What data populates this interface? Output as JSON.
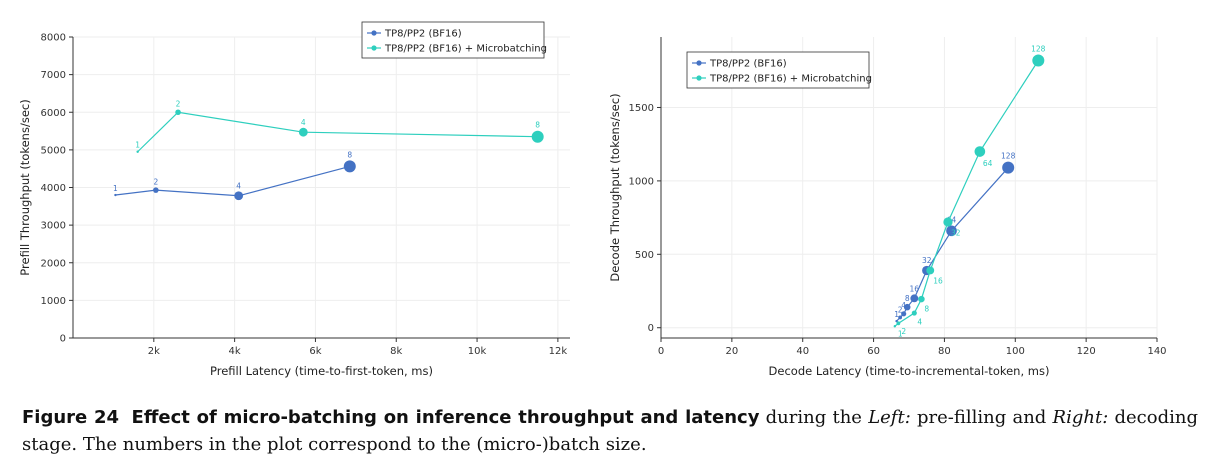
{
  "colors": {
    "series1": "#4472c4",
    "series2": "#2ecfbe",
    "grid": "#eeeeee",
    "axis": "#333333"
  },
  "chart_data": [
    {
      "type": "scatter",
      "panel": "left",
      "xlabel": "Prefill Latency (time-to-first-token, ms)",
      "ylabel": "Prefill Throughput (tokens/sec)",
      "xlim": [
        0,
        12300
      ],
      "ylim": [
        0,
        8000
      ],
      "xticks": [
        2000,
        4000,
        6000,
        8000,
        10000,
        12000
      ],
      "xtick_labels": [
        "2k",
        "4k",
        "6k",
        "8k",
        "10k",
        "12k"
      ],
      "yticks": [
        0,
        1000,
        2000,
        3000,
        4000,
        5000,
        6000,
        7000,
        8000
      ],
      "ytick_labels": [
        "0",
        "1000",
        "2000",
        "3000",
        "4000",
        "5000",
        "6000",
        "7000",
        "8000"
      ],
      "grid": true,
      "legend_position": "top-right",
      "series": [
        {
          "name": "TP8/PP2 (BF16)",
          "color": "#4472c4",
          "points": [
            {
              "x": 1050,
              "y": 3800,
              "label": "1"
            },
            {
              "x": 2050,
              "y": 3930,
              "label": "2"
            },
            {
              "x": 4100,
              "y": 3780,
              "label": "4"
            },
            {
              "x": 6850,
              "y": 4560,
              "label": "8"
            }
          ]
        },
        {
          "name": "TP8/PP2 (BF16) + Microbatching",
          "color": "#2ecfbe",
          "points": [
            {
              "x": 1600,
              "y": 4950,
              "label": "1"
            },
            {
              "x": 2600,
              "y": 6000,
              "label": "2"
            },
            {
              "x": 5700,
              "y": 5470,
              "label": "4"
            },
            {
              "x": 11500,
              "y": 5350,
              "label": "8"
            }
          ]
        }
      ]
    },
    {
      "type": "scatter",
      "panel": "right",
      "xlabel": "Decode Latency (time-to-incremental-token, ms)",
      "ylabel": "Decode Throughput (tokens/sec)",
      "xlim": [
        0,
        140
      ],
      "ylim": [
        -70,
        1980
      ],
      "xticks": [
        0,
        20,
        40,
        60,
        80,
        100,
        120,
        140
      ],
      "xtick_labels": [
        "0",
        "20",
        "40",
        "60",
        "80",
        "100",
        "120",
        "140"
      ],
      "yticks": [
        0,
        500,
        1000,
        1500
      ],
      "ytick_labels": [
        "0",
        "500",
        "1000",
        "1500"
      ],
      "grid": true,
      "legend_position": "top-left",
      "series": [
        {
          "name": "TP8/PP2 (BF16)",
          "color": "#4472c4",
          "points": [
            {
              "x": 66.5,
              "y": 45,
              "label": "1"
            },
            {
              "x": 67.5,
              "y": 70,
              "label": "2"
            },
            {
              "x": 68.5,
              "y": 95,
              "label": "4"
            },
            {
              "x": 69.5,
              "y": 140,
              "label": "8"
            },
            {
              "x": 71.5,
              "y": 200,
              "label": "16"
            },
            {
              "x": 75,
              "y": 390,
              "label": "32"
            },
            {
              "x": 82,
              "y": 660,
              "label": "64"
            },
            {
              "x": 98,
              "y": 1090,
              "label": "128"
            }
          ]
        },
        {
          "name": "TP8/PP2 (BF16) + Microbatching",
          "color": "#2ecfbe",
          "points": [
            {
              "x": 66,
              "y": 10,
              "label": "1"
            },
            {
              "x": 67,
              "y": 30,
              "label": "2"
            },
            {
              "x": 71.5,
              "y": 100,
              "label": "4"
            },
            {
              "x": 73.5,
              "y": 195,
              "label": "8"
            },
            {
              "x": 76,
              "y": 390,
              "label": "16"
            },
            {
              "x": 81,
              "y": 720,
              "label": "32"
            },
            {
              "x": 90,
              "y": 1200,
              "label": "64"
            },
            {
              "x": 106.5,
              "y": 1820,
              "label": "128"
            }
          ]
        }
      ]
    }
  ],
  "caption": {
    "figure_label": "Figure 24",
    "title": "Effect of micro-batching on inference throughput and latency",
    "text_1": " during the ",
    "left_label": "Left:",
    "text_2": " pre-filling and ",
    "right_label": "Right:",
    "text_3": " decoding stage. The numbers in the plot correspond to the (micro-)batch size."
  }
}
